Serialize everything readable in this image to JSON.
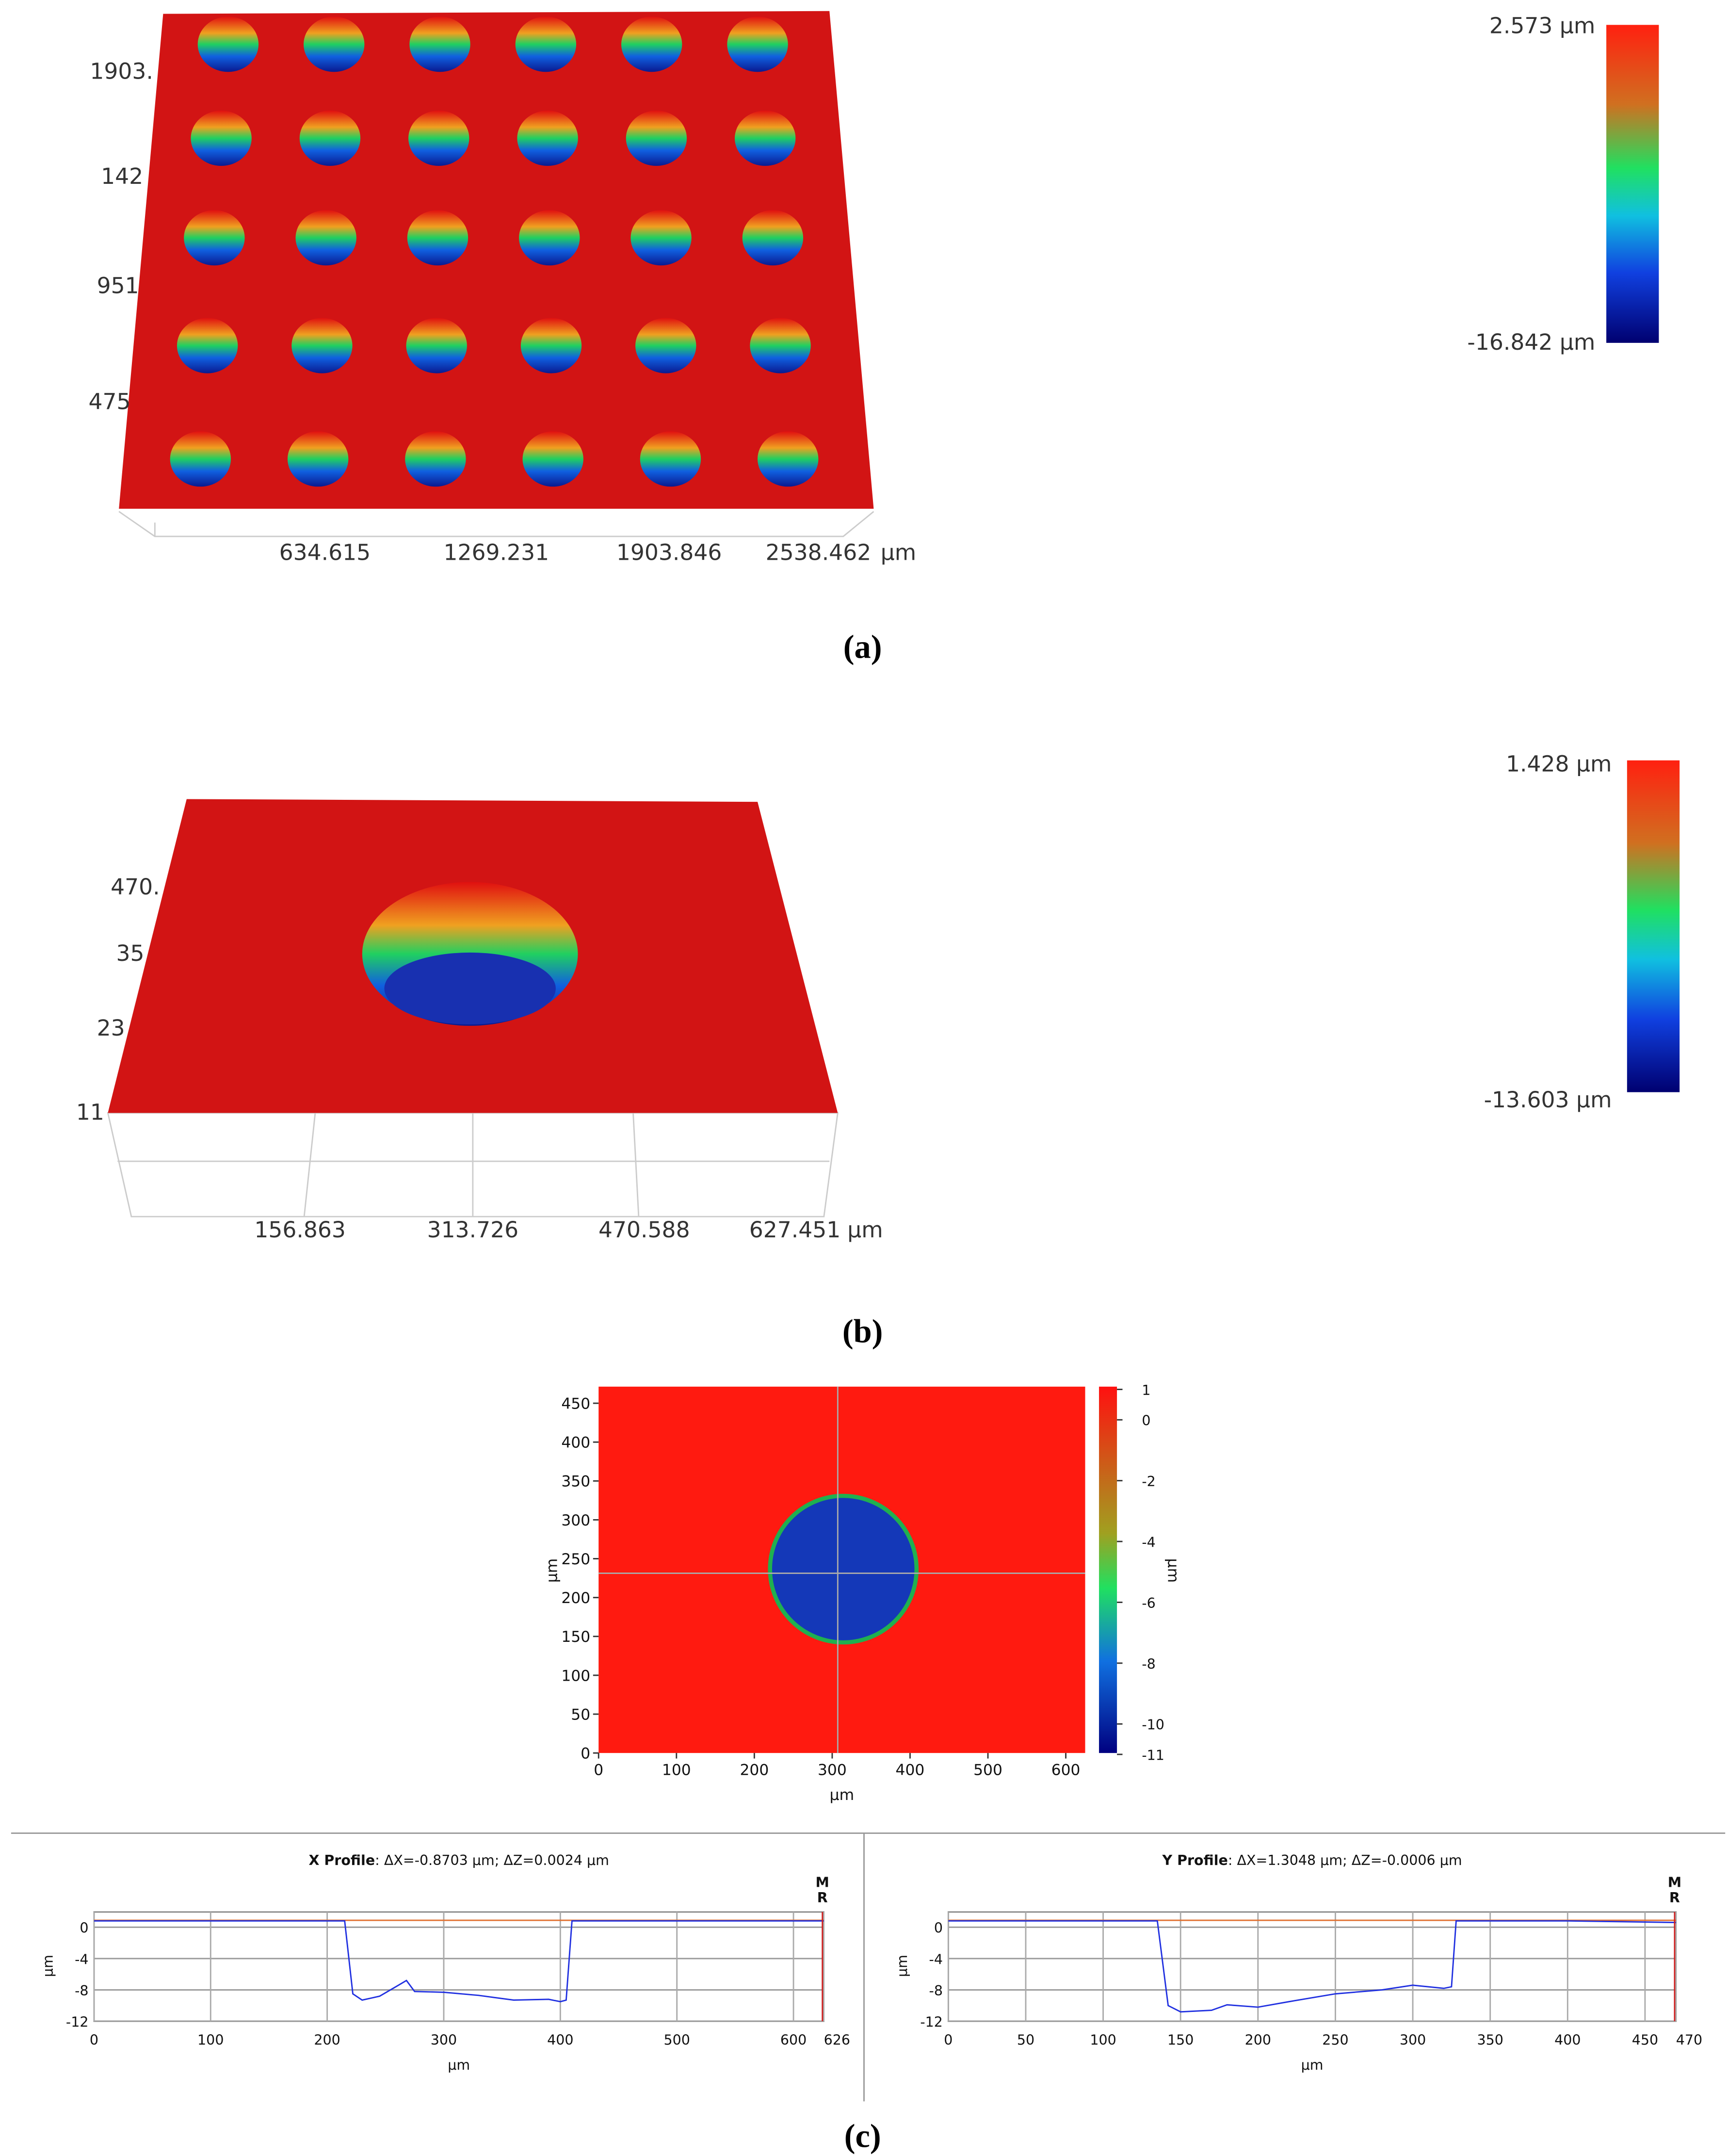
{
  "panel_a": {
    "caption": "(a)",
    "scale_max": "2.573 µm",
    "scale_min": "-16.842 µm",
    "y_labels": [
      "1903.",
      "142",
      "951",
      "475"
    ],
    "x_labels": [
      "634.615",
      "1269.231",
      "1903.846",
      "2538.462"
    ],
    "x_unit": "µm"
  },
  "panel_b": {
    "caption": "(b)",
    "scale_max": "1.428 µm",
    "scale_min": "-13.603 µm",
    "y_labels": [
      "470.",
      "35",
      "23",
      "11"
    ],
    "x_labels": [
      "156.863",
      "313.726",
      "470.588",
      "627.451"
    ],
    "x_unit": "µm"
  },
  "panel_c": {
    "caption": "(c)",
    "map": {
      "x_ticks": [
        0,
        100,
        200,
        300,
        400,
        500,
        600
      ],
      "y_ticks": [
        0,
        50,
        100,
        150,
        200,
        250,
        300,
        350,
        400,
        450
      ],
      "x_label": "µm",
      "y_label": "µm",
      "colorbar_ticks": [
        1,
        0,
        -2,
        -4,
        -6,
        -8,
        -10,
        -11
      ],
      "colorbar_label": "µm"
    },
    "x_profile": {
      "title": "X Profile",
      "subtitle": ": ΔX=-0.8703 µm; ΔZ=0.0024 µm",
      "xticks": [
        0,
        100,
        200,
        300,
        400,
        500,
        600,
        626
      ],
      "yticks": [
        0,
        -4,
        -8,
        -12
      ],
      "x_label": "µm",
      "y_label": "µm",
      "markers": [
        "M",
        "R"
      ],
      "x": [
        0,
        215,
        222,
        230,
        245,
        260,
        268,
        275,
        300,
        330,
        360,
        390,
        400,
        405,
        410,
        626
      ],
      "y": [
        0.8,
        0.8,
        -8.5,
        -9.3,
        -8.8,
        -7.5,
        -6.8,
        -8.2,
        -8.3,
        -8.7,
        -9.3,
        -9.2,
        -9.5,
        -9.3,
        0.8,
        0.8
      ]
    },
    "y_profile": {
      "title": "Y Profile",
      "subtitle": ": ΔX=1.3048 µm; ΔZ=-0.0006 µm",
      "xticks": [
        0,
        50,
        100,
        150,
        200,
        250,
        300,
        350,
        400,
        450,
        470
      ],
      "yticks": [
        0,
        -4,
        -8,
        -12
      ],
      "x_label": "µm",
      "y_label": "µm",
      "markers": [
        "M",
        "R"
      ],
      "x": [
        0,
        135,
        142,
        150,
        170,
        180,
        200,
        220,
        250,
        280,
        300,
        320,
        325,
        328,
        400,
        470
      ],
      "y": [
        0.8,
        0.8,
        -10,
        -10.8,
        -10.6,
        -9.9,
        -10.2,
        -9.5,
        -8.5,
        -8,
        -7.4,
        -7.8,
        -7.6,
        0.8,
        0.8,
        0.6
      ]
    }
  }
}
